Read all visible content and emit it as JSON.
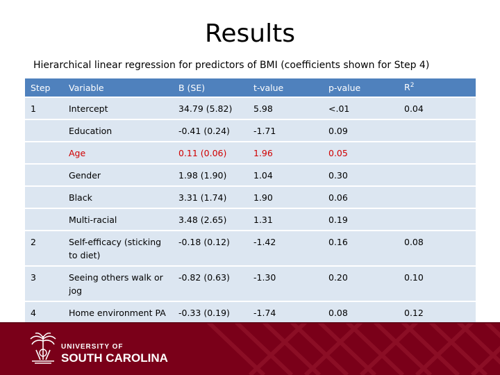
{
  "title": "Results",
  "subtitle": "Hierarchical linear regression for predictors of BMI (coefficients shown for Step 4)",
  "columns": [
    "Step",
    "Variable",
    "B (SE)",
    "t-value",
    "p-value",
    "R"
  ],
  "r2_superscript": "2",
  "rows": [
    {
      "step": "1",
      "variable": "Intercept",
      "b_se": "34.79 (5.82)",
      "t": "5.98",
      "p": "<.01",
      "r2": "0.04",
      "highlight": false
    },
    {
      "step": "",
      "variable": "Education",
      "b_se": "-0.41 (0.24)",
      "t": "-1.71",
      "p": "0.09",
      "r2": "",
      "highlight": false
    },
    {
      "step": "",
      "variable": "Age",
      "b_se": "0.11 (0.06)",
      "t": "1.96",
      "p": "0.05",
      "r2": "",
      "highlight": true
    },
    {
      "step": "",
      "variable": "Gender",
      "b_se": "1.98 (1.90)",
      "t": "1.04",
      "p": "0.30",
      "r2": "",
      "highlight": false
    },
    {
      "step": "",
      "variable": "Black",
      "b_se": "3.31 (1.74)",
      "t": "1.90",
      "p": "0.06",
      "r2": "",
      "highlight": false
    },
    {
      "step": "",
      "variable": "Multi-racial",
      "b_se": "3.48 (2.65)",
      "t": "1.31",
      "p": "0.19",
      "r2": "",
      "highlight": false
    },
    {
      "step": "2",
      "variable": "Self-efficacy (sticking to diet)",
      "b_se": "-0.18 (0.12)",
      "t": "-1.42",
      "p": "0.16",
      "r2": "0.08",
      "highlight": false
    },
    {
      "step": "3",
      "variable": "Seeing others walk or jog",
      "b_se": "-0.82 (0.63)",
      "t": "-1.30",
      "p": "0.20",
      "r2": "0.10",
      "highlight": false
    },
    {
      "step": "4",
      "variable": "Home environment PA supports",
      "b_se": "-0.33 (0.19)",
      "t": "-1.74",
      "p": "0.08",
      "r2": "0.12",
      "highlight": false
    }
  ],
  "footer": {
    "university_line": "UNIVERSITY OF",
    "name_line": "SOUTH CAROLINA",
    "brand_color": "#7a0019",
    "icon": "palmetto-tree-logo-icon"
  }
}
